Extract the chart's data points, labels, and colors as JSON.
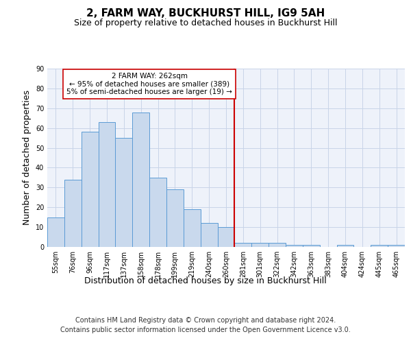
{
  "title": "2, FARM WAY, BUCKHURST HILL, IG9 5AH",
  "subtitle": "Size of property relative to detached houses in Buckhurst Hill",
  "xlabel": "Distribution of detached houses by size in Buckhurst Hill",
  "ylabel": "Number of detached properties",
  "categories": [
    "55sqm",
    "76sqm",
    "96sqm",
    "117sqm",
    "137sqm",
    "158sqm",
    "178sqm",
    "199sqm",
    "219sqm",
    "240sqm",
    "260sqm",
    "281sqm",
    "301sqm",
    "322sqm",
    "342sqm",
    "363sqm",
    "383sqm",
    "404sqm",
    "424sqm",
    "445sqm",
    "465sqm"
  ],
  "values": [
    15,
    34,
    58,
    63,
    55,
    68,
    35,
    29,
    19,
    12,
    10,
    2,
    2,
    2,
    1,
    1,
    0,
    1,
    0,
    1,
    1
  ],
  "bar_color": "#c9d9ed",
  "bar_edge_color": "#5b9bd5",
  "grid_color": "#c8d4e8",
  "background_color": "#eef2fa",
  "annotation_text": "2 FARM WAY: 262sqm\n← 95% of detached houses are smaller (389)\n5% of semi-detached houses are larger (19) →",
  "vline_position": 10.5,
  "vline_color": "#cc0000",
  "annotation_box_color": "#ffffff",
  "annotation_box_edge_color": "#cc0000",
  "ylim": [
    0,
    90
  ],
  "yticks": [
    0,
    10,
    20,
    30,
    40,
    50,
    60,
    70,
    80,
    90
  ],
  "footer_line1": "Contains HM Land Registry data © Crown copyright and database right 2024.",
  "footer_line2": "Contains public sector information licensed under the Open Government Licence v3.0.",
  "title_fontsize": 11,
  "subtitle_fontsize": 9,
  "axis_label_fontsize": 9,
  "tick_fontsize": 7,
  "footer_fontsize": 7,
  "annotation_fontsize": 7.5
}
